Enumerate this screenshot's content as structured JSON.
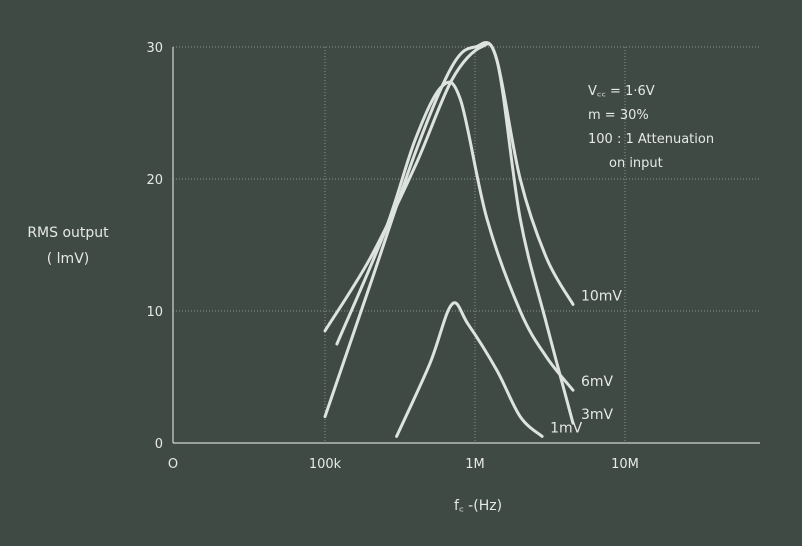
{
  "chart_data": {
    "type": "line",
    "ylabel_lines": [
      "RMS output",
      "( lmV)"
    ],
    "xlabel": "f꜀ -(Hz)",
    "x_scale": "log",
    "x_tick_labels": [
      {
        "x": 0,
        "label": "O"
      },
      {
        "x": 100000,
        "label": "100k"
      },
      {
        "x": 1000000,
        "label": "1M"
      },
      {
        "x": 10000000,
        "label": "10M"
      }
    ],
    "y_ticks": [
      0,
      10,
      20,
      30
    ],
    "ylim": [
      0,
      30
    ],
    "annotation_lines": [
      "V꜀꜀ = 1·6V",
      "m = 30%",
      "100 : 1  Attenuation",
      "on input"
    ],
    "series": [
      {
        "name": "10mV",
        "points": [
          [
            100000,
            8.5
          ],
          [
            200000,
            14
          ],
          [
            400000,
            21
          ],
          [
            700000,
            27.5
          ],
          [
            1100000,
            30
          ],
          [
            1400000,
            29
          ],
          [
            2000000,
            20
          ],
          [
            3000000,
            14
          ],
          [
            4500000,
            10.5
          ]
        ]
      },
      {
        "name": "6mV",
        "points": [
          [
            120000,
            7.5
          ],
          [
            250000,
            16
          ],
          [
            400000,
            23
          ],
          [
            600000,
            27
          ],
          [
            800000,
            26
          ],
          [
            1200000,
            17
          ],
          [
            2000000,
            10
          ],
          [
            3000000,
            6.5
          ],
          [
            4500000,
            4
          ]
        ]
      },
      {
        "name": "3mV",
        "points": [
          [
            100000,
            2
          ],
          [
            200000,
            12
          ],
          [
            400000,
            22
          ],
          [
            700000,
            28.5
          ],
          [
            1000000,
            30
          ],
          [
            1400000,
            29
          ],
          [
            2000000,
            17
          ],
          [
            3000000,
            9
          ],
          [
            4500000,
            1.5
          ]
        ]
      },
      {
        "name": "1mV",
        "points": [
          [
            300000,
            0.5
          ],
          [
            500000,
            6
          ],
          [
            700000,
            10.5
          ],
          [
            900000,
            9
          ],
          [
            1400000,
            5.5
          ],
          [
            2000000,
            2
          ],
          [
            2800000,
            0.5
          ]
        ]
      }
    ]
  },
  "colors": {
    "background": "#3f4a45",
    "curve": "#dde3de",
    "grid": "#c9d0cb"
  }
}
